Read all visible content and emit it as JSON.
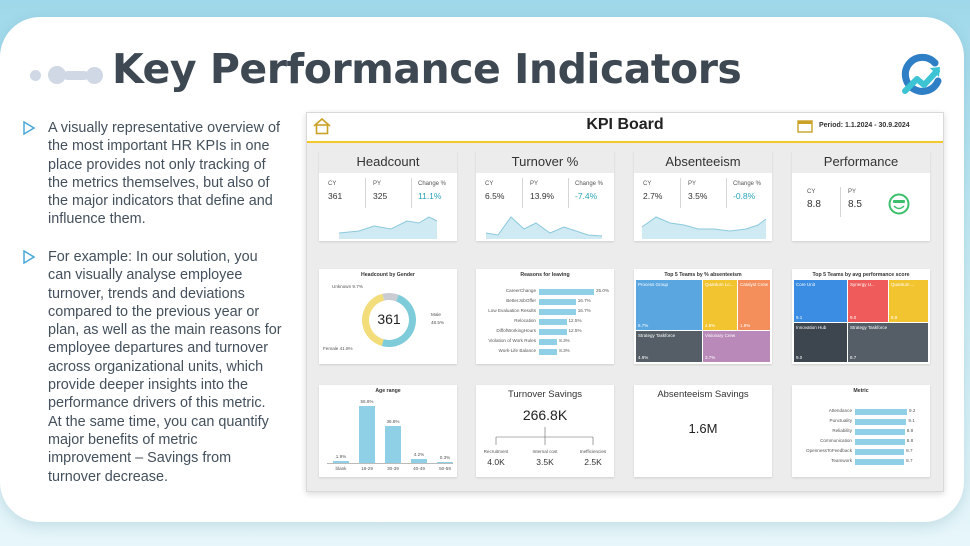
{
  "slide": {
    "title": "Key Performance Indicators",
    "bullets": [
      "A visually representative overview of the most important HR KPIs in one place provides not only tracking of the metrics themselves, but also of the major indicators that define and influence them.",
      "For example: In our solution, you can visually analyse employee turnover, trends and deviations compared to the previous year or plan, as well as the main reasons for employee departures and turnover across organizational units, which provide deeper insights into the performance drivers of this metric. At the same time, you can quantify major benefits of metric improvement – Savings from turnover decrease."
    ],
    "colors": {
      "accent": "#2aa3b8",
      "title": "#3d4852",
      "bullet_arrow": "#4aa8d8"
    },
    "icons": [
      "decor-dots-icon",
      "brand-logo-icon",
      "bullet-arrow-icon"
    ]
  },
  "dashboard": {
    "title": "KPI Board",
    "period": "Period: 1.1.2024 - 30.9.2024",
    "icons": [
      "home-icon",
      "calendar-icon",
      "smiley-face-icon"
    ],
    "kpis": [
      {
        "title": "Headcount",
        "cy_label": "CY",
        "cy": "361",
        "py_label": "PY",
        "py": "325",
        "change_label": "Change %",
        "change": "11.1%"
      },
      {
        "title": "Turnover %",
        "cy_label": "CY",
        "cy": "6.5%",
        "py_label": "PY",
        "py": "13.9%",
        "change_label": "Change %",
        "change": "-7.4%"
      },
      {
        "title": "Absenteeism",
        "cy_label": "CY",
        "cy": "2.7%",
        "py_label": "PY",
        "py": "3.5%",
        "change_label": "Change %",
        "change": "-0.8%"
      },
      {
        "title": "Performance",
        "cy_label": "CY",
        "cy": "8.8",
        "py_label": "PY",
        "py": "8.5"
      }
    ],
    "savings": {
      "turnover_title": "Turnover Savings",
      "turnover_total": "266.8K",
      "breakdown": [
        {
          "label": "Recruitment",
          "value": "4.0K"
        },
        {
          "label": "Internal cost",
          "value": "3.5K"
        },
        {
          "label": "Inefficiencies",
          "value": "2.5K"
        }
      ],
      "absenteeism_title": "Absenteeism Savings",
      "absenteeism_total": "1.6M"
    }
  },
  "chart_data": [
    {
      "type": "pie",
      "title": "Headcount by Gender",
      "center_label": "361",
      "slices": [
        {
          "name": "Male",
          "label": "Male",
          "pct_label": "48.5%",
          "value": 48.5,
          "color": "#7ecbd9"
        },
        {
          "name": "Female",
          "label": "Female 41.8%",
          "value": 41.8,
          "color": "#f3dc7a"
        },
        {
          "name": "Unknown",
          "label": "Unknown 9.7%",
          "value": 9.7,
          "color": "#c9ccd2"
        }
      ]
    },
    {
      "type": "bar",
      "orientation": "horizontal",
      "title": "Reasons for leaving",
      "categories": [
        "CareerChange",
        "BetterJobOffer",
        "Low Evaluation Results",
        "Relocation",
        "DiffofWorkingHours",
        "Violation of Work Rules",
        "Work-Life Balance"
      ],
      "values": [
        25.0,
        16.7,
        16.7,
        12.5,
        12.5,
        8.3,
        8.3
      ],
      "value_labels": [
        "25.0%",
        "16.7%",
        "16.7%",
        "12.5%",
        "12.5%",
        "8.3%",
        "8.3%"
      ],
      "xlim": [
        0,
        25
      ],
      "color": "#8fd0e6"
    },
    {
      "type": "heatmap",
      "title": "Top 5 Teams by % absenteeism",
      "cells": [
        {
          "name": "Process Group",
          "value_label": "6.7%",
          "color": "#5aa6e0"
        },
        {
          "name": "Quantum Lo...",
          "value_label": "4.8%",
          "color": "#f2c530"
        },
        {
          "name": "Catalyst Crew",
          "value_label": "1.9%",
          "color": "#f48f5c"
        },
        {
          "name": "Strategy Taskforce",
          "value_label": "4.9%",
          "color": "#555e66"
        },
        {
          "name": "Visionary Crew",
          "value_label": "3.7%",
          "color": "#b98ab9"
        }
      ]
    },
    {
      "type": "heatmap",
      "title": "Top 5 Teams by avg performance score",
      "cells": [
        {
          "name": "Core Unit",
          "value_label": "9.1",
          "color": "#3b8de3"
        },
        {
          "name": "Synergy U...",
          "value_label": "9.0",
          "color": "#ef5b5b"
        },
        {
          "name": "Quantum ...",
          "value_label": "8.8",
          "color": "#f2c530"
        },
        {
          "name": "Innovation Hub",
          "value_label": "9.0",
          "color": "#3d464f"
        },
        {
          "name": "Strategy Taskforce",
          "value_label": "8.7",
          "color": "#555e66"
        }
      ]
    },
    {
      "type": "bar",
      "title": "Age range",
      "categories": [
        "blank",
        "18-29",
        "30-39",
        "40-49",
        "50-59"
      ],
      "values": [
        1.9,
        56.8,
        36.8,
        4.2,
        0.3
      ],
      "value_labels": [
        "1.9%",
        "56.8%",
        "36.8%",
        "4.2%",
        "0.3%"
      ],
      "ylim": [
        0,
        60
      ],
      "color": "#8fd0e6"
    },
    {
      "type": "bar",
      "orientation": "horizontal",
      "title": "Metric",
      "categories": [
        "Attendance",
        "Punctuality",
        "Reliability",
        "Communication",
        "OpennessToFeedback",
        "Teamwork"
      ],
      "values": [
        9.2,
        9.1,
        8.8,
        8.8,
        8.7,
        8.7
      ],
      "value_labels": [
        "9.2",
        "9.1",
        "8.8",
        "8.8",
        "8.7",
        "8.7"
      ],
      "xlim": [
        0,
        9.2
      ],
      "color": "#8fd0e6"
    }
  ]
}
